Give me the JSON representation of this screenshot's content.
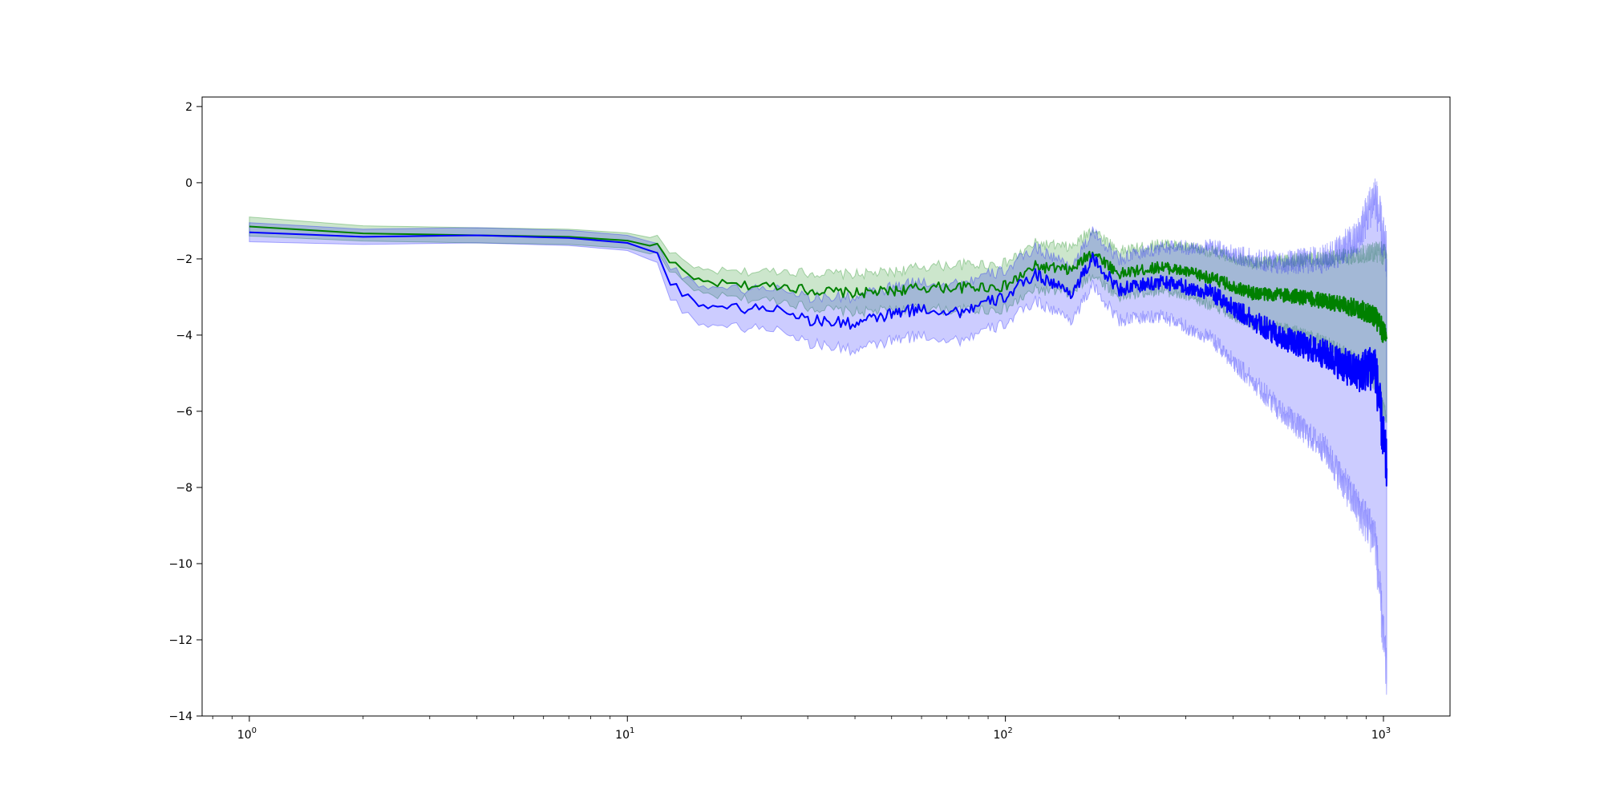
{
  "chart_data": {
    "type": "line",
    "title": "",
    "xlabel": "",
    "ylabel": "",
    "xscale": "log",
    "xlim": [
      0.75,
      1500
    ],
    "ylim": [
      -14,
      2.25
    ],
    "grid": false,
    "legend": "none",
    "x_ticks": [
      {
        "value": 1,
        "base": "10",
        "exp": "0"
      },
      {
        "value": 10,
        "base": "10",
        "exp": "1"
      },
      {
        "value": 100,
        "base": "10",
        "exp": "2"
      },
      {
        "value": 1000,
        "base": "10",
        "exp": "3"
      }
    ],
    "y_ticks": [
      {
        "value": 2,
        "label": "2"
      },
      {
        "value": 0,
        "label": "0"
      },
      {
        "value": -2,
        "label": "−2"
      },
      {
        "value": -4,
        "label": "−4"
      },
      {
        "value": -6,
        "label": "−6"
      },
      {
        "value": -8,
        "label": "−8"
      },
      {
        "value": -10,
        "label": "−10"
      },
      {
        "value": -12,
        "label": "−12"
      },
      {
        "value": -14,
        "label": "−14"
      }
    ],
    "series": [
      {
        "color": "#008000",
        "band_color": "#008000",
        "band_opacity": 0.2,
        "points": [
          [
            1,
            -1.15,
            0.25
          ],
          [
            2,
            -1.33,
            0.2
          ],
          [
            4,
            -1.38,
            0.2
          ],
          [
            7,
            -1.42,
            0.2
          ],
          [
            10,
            -1.52,
            0.2
          ],
          [
            12,
            -1.7,
            0.22
          ],
          [
            15,
            -2.6,
            0.3
          ],
          [
            20,
            -2.7,
            0.35
          ],
          [
            26,
            -2.7,
            0.4
          ],
          [
            30,
            -2.82,
            0.45
          ],
          [
            40,
            -2.9,
            0.5
          ],
          [
            50,
            -2.85,
            0.5
          ],
          [
            60,
            -2.75,
            0.55
          ],
          [
            75,
            -2.75,
            0.6
          ],
          [
            100,
            -2.72,
            0.6
          ],
          [
            120,
            -2.2,
            0.6
          ],
          [
            150,
            -2.3,
            0.6
          ],
          [
            170,
            -1.8,
            0.6
          ],
          [
            200,
            -2.4,
            0.6
          ],
          [
            260,
            -2.2,
            0.6
          ],
          [
            350,
            -2.5,
            0.7
          ],
          [
            450,
            -2.9,
            0.8
          ],
          [
            550,
            -2.95,
            0.9
          ],
          [
            700,
            -3.1,
            1.1
          ],
          [
            850,
            -3.3,
            1.4
          ],
          [
            950,
            -3.5,
            1.7
          ],
          [
            1020,
            -4.1,
            2.2
          ]
        ]
      },
      {
        "color": "#0000ff",
        "band_color": "#0000ff",
        "band_opacity": 0.2,
        "points": [
          [
            1,
            -1.3,
            0.25
          ],
          [
            2,
            -1.42,
            0.2
          ],
          [
            4,
            -1.38,
            0.2
          ],
          [
            7,
            -1.45,
            0.2
          ],
          [
            10,
            -1.58,
            0.2
          ],
          [
            12,
            -1.85,
            0.25
          ],
          [
            13,
            -2.6,
            0.4
          ],
          [
            15,
            -3.15,
            0.5
          ],
          [
            20,
            -3.3,
            0.5
          ],
          [
            26,
            -3.3,
            0.55
          ],
          [
            30,
            -3.6,
            0.6
          ],
          [
            40,
            -3.7,
            0.7
          ],
          [
            50,
            -3.45,
            0.7
          ],
          [
            60,
            -3.3,
            0.7
          ],
          [
            75,
            -3.4,
            0.75
          ],
          [
            100,
            -3.0,
            0.7
          ],
          [
            120,
            -2.4,
            0.7
          ],
          [
            150,
            -2.9,
            0.7
          ],
          [
            170,
            -2.0,
            0.7
          ],
          [
            200,
            -2.8,
            0.8
          ],
          [
            260,
            -2.6,
            0.9
          ],
          [
            350,
            -2.9,
            1.2
          ],
          [
            450,
            -3.6,
            1.6
          ],
          [
            550,
            -4.1,
            2.0
          ],
          [
            700,
            -4.5,
            2.5
          ],
          [
            850,
            -5.0,
            3.5
          ],
          [
            950,
            -4.8,
            4.5
          ],
          [
            1020,
            -7.5,
            5.5
          ]
        ]
      }
    ]
  }
}
